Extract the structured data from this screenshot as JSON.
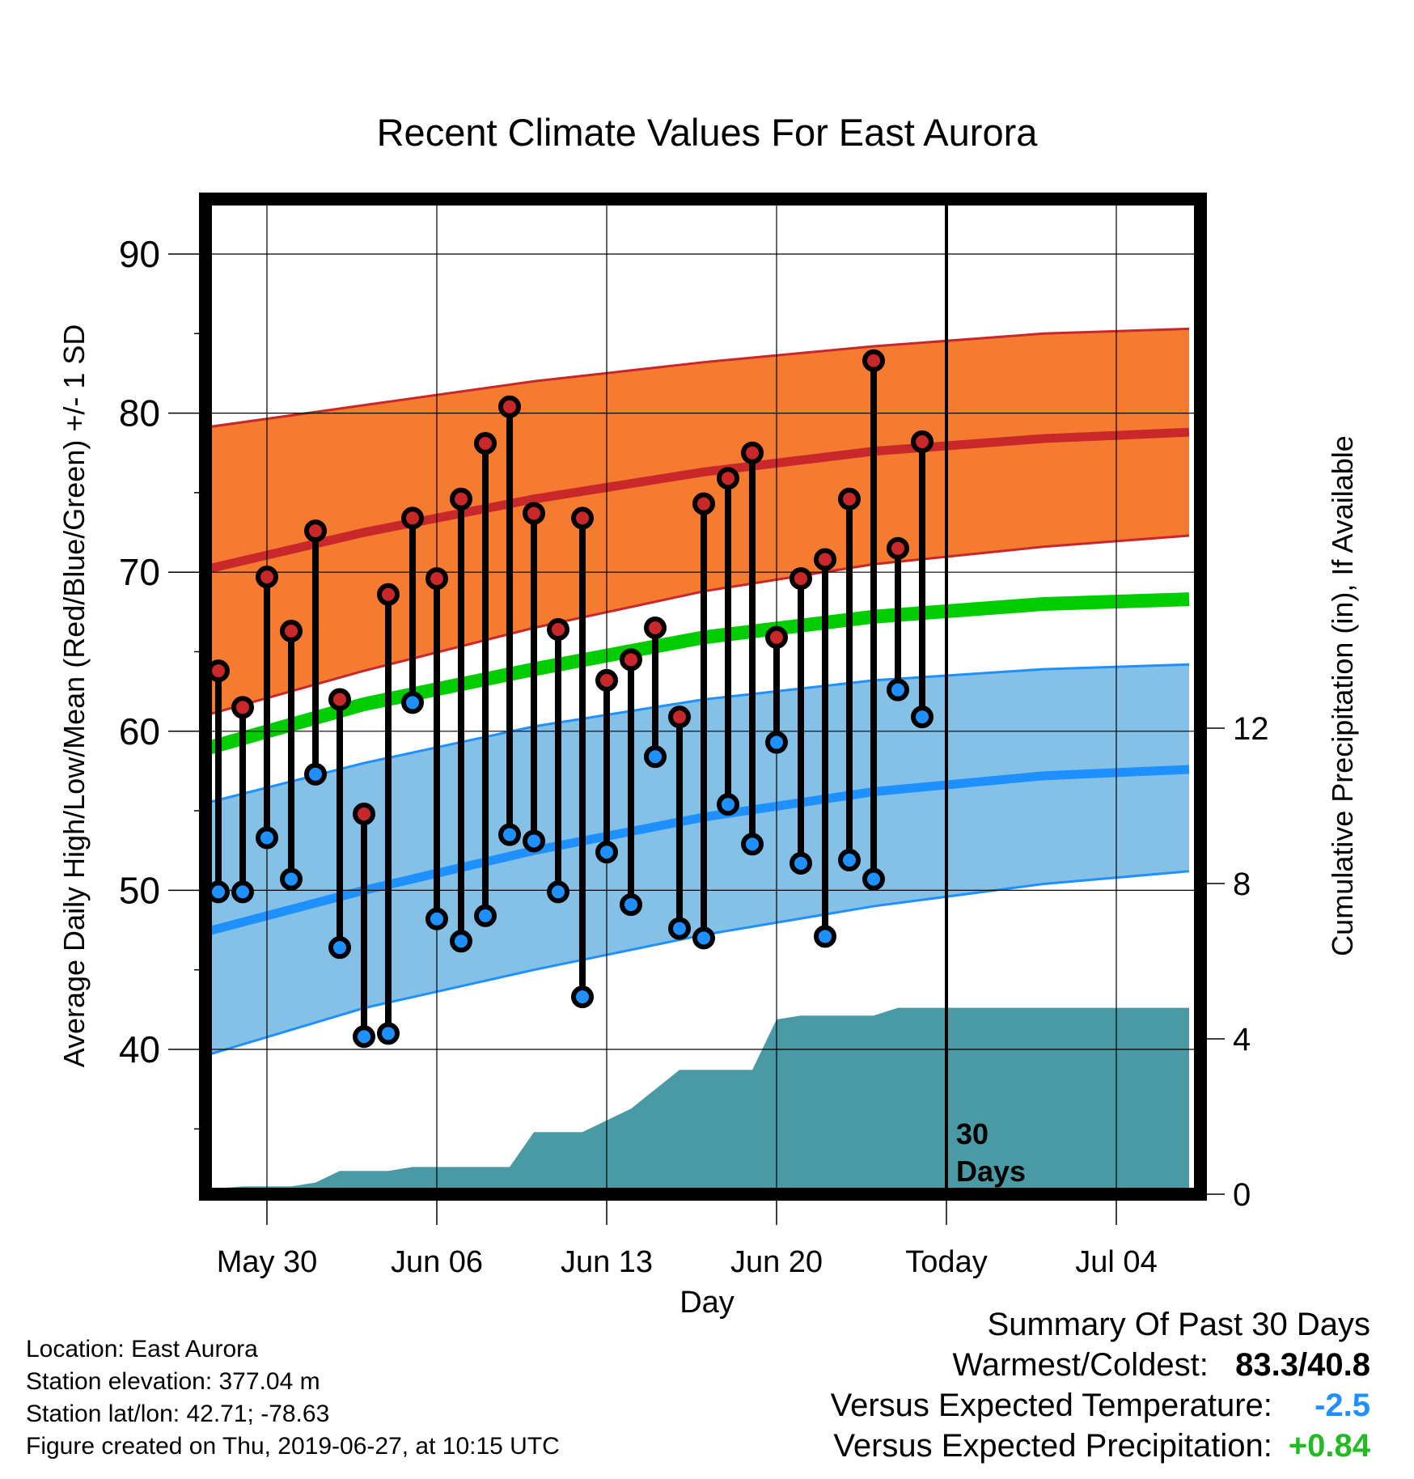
{
  "chart_data": {
    "type": "line",
    "title": "Recent Climate Values For East Aurora",
    "xlabel": "Day",
    "ylabel_left": "Average Daily High/Low/Mean (Red/Blue/Green) +/- 1 SD",
    "ylabel_right": "Cumulative Precipitation (in), If Available",
    "ylim_left": [
      31,
      94
    ],
    "ylim_right": [
      0,
      30.4
    ],
    "x_range_days": [
      "2019-05-27",
      "2019-07-07"
    ],
    "x_ticks": [
      {
        "date": "2019-05-30",
        "label": "May 30"
      },
      {
        "date": "2019-06-06",
        "label": "Jun 06"
      },
      {
        "date": "2019-06-13",
        "label": "Jun 13"
      },
      {
        "date": "2019-06-20",
        "label": "Jun 20"
      },
      {
        "date": "2019-06-27",
        "label": "Today"
      },
      {
        "date": "2019-07-04",
        "label": "Jul 04"
      }
    ],
    "y_ticks_left": [
      40,
      50,
      60,
      70,
      80,
      90
    ],
    "y_ticks_right": [
      0,
      4,
      8,
      12
    ],
    "grid": true,
    "today_line": {
      "date": "2019-06-27",
      "label_line1": "30",
      "label_line2": "Days"
    },
    "normals": {
      "dates": [
        "2019-05-27",
        "2019-06-03",
        "2019-06-10",
        "2019-06-17",
        "2019-06-24",
        "2019-07-01",
        "2019-07-07"
      ],
      "high_mean": [
        70.0,
        72.5,
        74.6,
        76.3,
        77.6,
        78.4,
        78.8
      ],
      "high_upper": [
        79.0,
        80.5,
        82.0,
        83.2,
        84.2,
        85.0,
        85.3
      ],
      "high_lower": [
        60.8,
        63.8,
        66.5,
        68.8,
        70.5,
        71.6,
        72.3
      ],
      "low_mean": [
        47.2,
        50.0,
        52.5,
        54.6,
        56.2,
        57.2,
        57.6
      ],
      "low_upper": [
        55.3,
        58.0,
        60.3,
        62.0,
        63.2,
        63.9,
        64.2
      ],
      "low_lower": [
        39.4,
        42.6,
        45.0,
        47.2,
        49.0,
        50.4,
        51.2
      ],
      "mean": [
        58.7,
        61.7,
        63.9,
        65.9,
        67.2,
        68.0,
        68.3
      ]
    },
    "series": [
      {
        "name": "High",
        "color": "#c8282a",
        "dates": [
          "2019-05-28",
          "2019-05-29",
          "2019-05-30",
          "2019-05-31",
          "2019-06-01",
          "2019-06-02",
          "2019-06-03",
          "2019-06-04",
          "2019-06-05",
          "2019-06-06",
          "2019-06-07",
          "2019-06-08",
          "2019-06-09",
          "2019-06-10",
          "2019-06-11",
          "2019-06-12",
          "2019-06-13",
          "2019-06-14",
          "2019-06-15",
          "2019-06-16",
          "2019-06-17",
          "2019-06-18",
          "2019-06-19",
          "2019-06-20",
          "2019-06-21",
          "2019-06-22",
          "2019-06-23",
          "2019-06-24",
          "2019-06-25",
          "2019-06-26"
        ],
        "values": [
          63.8,
          61.5,
          69.7,
          66.3,
          72.6,
          62.0,
          54.8,
          68.6,
          73.4,
          69.6,
          74.6,
          78.1,
          80.4,
          73.7,
          66.4,
          73.4,
          63.2,
          64.5,
          66.5,
          60.9,
          74.3,
          75.9,
          77.5,
          65.9,
          69.6,
          70.8,
          74.6,
          83.3,
          71.5,
          78.2
        ]
      },
      {
        "name": "Low",
        "color": "#1e90ff",
        "dates": [
          "2019-05-28",
          "2019-05-29",
          "2019-05-30",
          "2019-05-31",
          "2019-06-01",
          "2019-06-02",
          "2019-06-03",
          "2019-06-04",
          "2019-06-05",
          "2019-06-06",
          "2019-06-07",
          "2019-06-08",
          "2019-06-09",
          "2019-06-10",
          "2019-06-11",
          "2019-06-12",
          "2019-06-13",
          "2019-06-14",
          "2019-06-15",
          "2019-06-16",
          "2019-06-17",
          "2019-06-18",
          "2019-06-19",
          "2019-06-20",
          "2019-06-21",
          "2019-06-22",
          "2019-06-23",
          "2019-06-24",
          "2019-06-25",
          "2019-06-26"
        ],
        "values": [
          49.9,
          49.9,
          53.3,
          50.7,
          57.3,
          46.4,
          40.8,
          41.0,
          61.8,
          48.2,
          46.8,
          48.4,
          53.5,
          53.1,
          49.9,
          43.3,
          52.4,
          49.1,
          58.4,
          47.6,
          47.0,
          55.4,
          52.9,
          59.3,
          51.7,
          47.1,
          51.9,
          50.7,
          62.6,
          60.9
        ]
      },
      {
        "name": "Cumulative Precipitation",
        "color": "#4a9aa5",
        "dates": [
          "2019-05-27",
          "2019-05-28",
          "2019-05-29",
          "2019-05-30",
          "2019-05-31",
          "2019-06-01",
          "2019-06-02",
          "2019-06-03",
          "2019-06-04",
          "2019-06-05",
          "2019-06-06",
          "2019-06-07",
          "2019-06-08",
          "2019-06-09",
          "2019-06-10",
          "2019-06-11",
          "2019-06-12",
          "2019-06-13",
          "2019-06-14",
          "2019-06-15",
          "2019-06-16",
          "2019-06-17",
          "2019-06-18",
          "2019-06-19",
          "2019-06-20",
          "2019-06-21",
          "2019-06-22",
          "2019-06-23",
          "2019-06-24",
          "2019-06-25",
          "2019-06-26",
          "2019-07-07"
        ],
        "values": [
          0.0,
          0.15,
          0.2,
          0.2,
          0.2,
          0.3,
          0.6,
          0.6,
          0.6,
          0.7,
          0.7,
          0.7,
          0.7,
          0.7,
          1.6,
          1.6,
          1.6,
          1.9,
          2.2,
          2.7,
          3.2,
          3.2,
          3.2,
          3.2,
          4.5,
          4.6,
          4.6,
          4.6,
          4.6,
          4.8,
          4.8,
          4.8
        ]
      }
    ]
  },
  "footer": {
    "location": "Location: East Aurora",
    "elevation": "Station elevation: 377.04 m",
    "latlon": "Station lat/lon: 42.71; -78.63",
    "created": "Figure created on Thu, 2019-06-27, at 10:15 UTC"
  },
  "summary": {
    "title": "Summary Of Past 30 Days",
    "warm_cold_label": "Warmest/Coldest:",
    "warmest": "83.3",
    "separator": "/",
    "coldest": "40.8",
    "temp_label": "Versus Expected Temperature:",
    "temp_value": "-2.5",
    "temp_color": "#1e90ff",
    "precip_label": "Versus Expected Precipitation:",
    "precip_value": "+0.84",
    "precip_color": "#22bb22"
  },
  "colors": {
    "high_band": "#f47b30",
    "high_line": "#c8282a",
    "low_band": "#85c1e6",
    "low_line": "#1e90ff",
    "mean_line": "#00cc00",
    "precip_fill": "#4a9aa5"
  }
}
